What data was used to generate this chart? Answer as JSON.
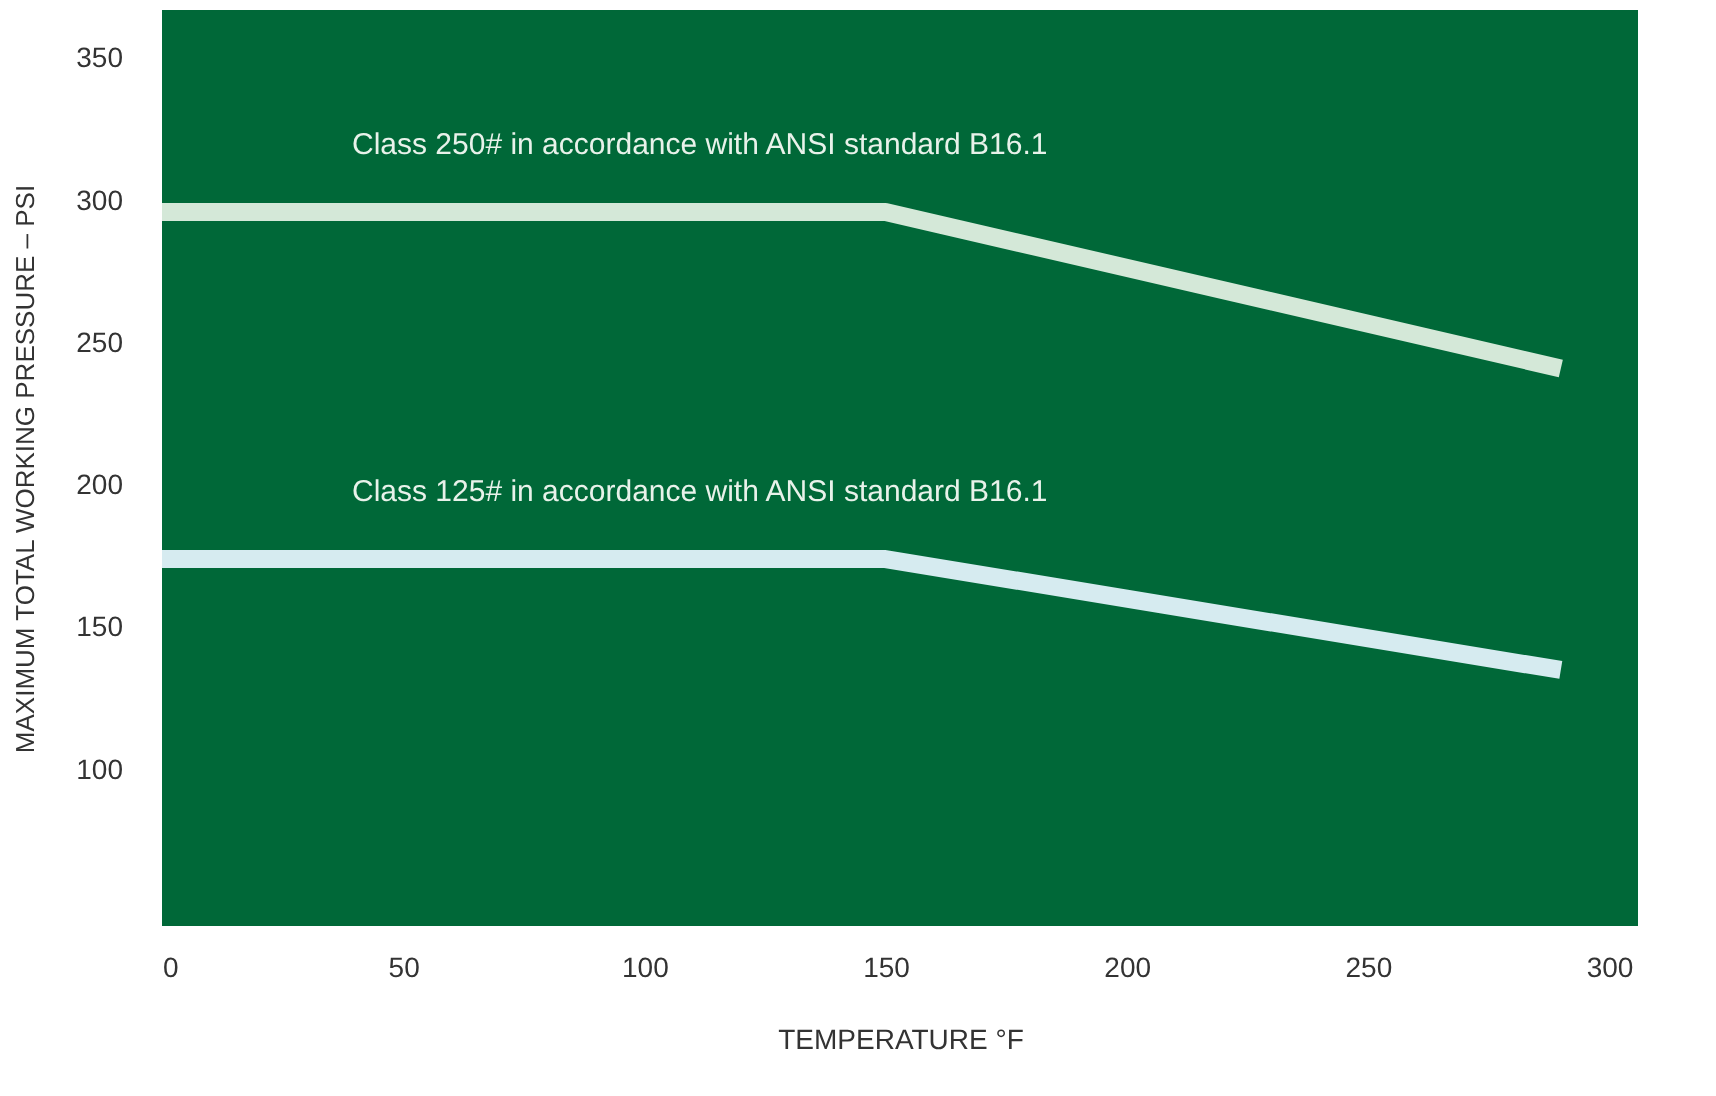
{
  "chart_data": {
    "type": "line",
    "xlabel": "TEMPERATURE  °F",
    "ylabel": "MAXIMUM TOTAL WORKING PRESSURE – PSI",
    "x": [
      0,
      150,
      290
    ],
    "series": [
      {
        "name": "Class 250# in accordance with ANSI standard B16.1",
        "color": "#d4e8d8",
        "values": [
          296,
          296,
          241
        ]
      },
      {
        "name": "Class 125# in accordance with ANSI standard B16.1",
        "color": "#d6ebf0",
        "values": [
          174,
          174,
          135
        ]
      }
    ],
    "xlim": [
      0,
      306
    ],
    "xticks": [
      0,
      50,
      100,
      150,
      200,
      250,
      300
    ],
    "ylim": [
      45,
      367
    ],
    "yticks": [
      100,
      150,
      200,
      250,
      300,
      350
    ],
    "grid": false,
    "legend": false,
    "line_style": "solid"
  }
}
